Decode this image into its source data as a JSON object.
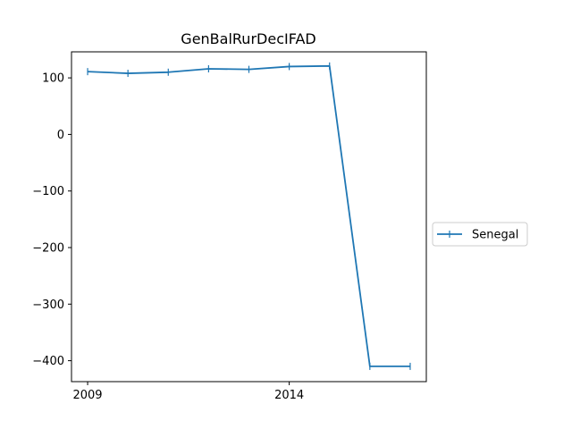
{
  "chart_data": {
    "type": "line",
    "title": "GenBalRurDecIFAD",
    "xlabel": "",
    "ylabel": "",
    "x": [
      2009,
      2010,
      2011,
      2012,
      2013,
      2014,
      2015,
      2016,
      2017
    ],
    "x_ticks": [
      2009,
      2014
    ],
    "x_tick_labels": [
      "2009",
      "2014"
    ],
    "xlim": [
      2008.6,
      2017.4
    ],
    "y_ticks": [
      100,
      0,
      -100,
      -200,
      -300,
      -400
    ],
    "y_tick_labels": [
      "100",
      "0",
      "−100",
      "−200",
      "−300",
      "−400"
    ],
    "ylim": [
      -437,
      146
    ],
    "grid": false,
    "legend_position": "right",
    "series": [
      {
        "name": "Senegal",
        "color": "#1f77b4",
        "marker": "vline",
        "values": [
          111,
          108,
          110,
          116,
          115,
          120,
          121,
          -410,
          -410
        ]
      }
    ]
  }
}
